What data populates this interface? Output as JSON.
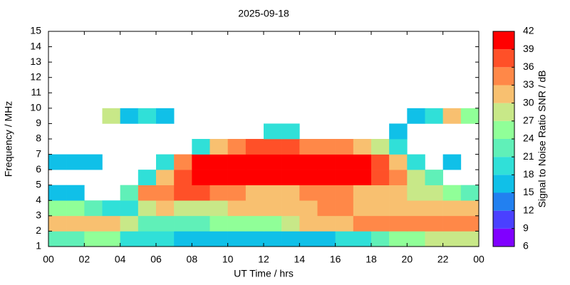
{
  "chart_data": {
    "type": "heatmap",
    "title": "2025-09-18",
    "xlabel": "UT Time / hrs",
    "ylabel": "Frequency / MHz",
    "xlim": [
      0,
      24
    ],
    "ylim": [
      1,
      15
    ],
    "xticks": [
      {
        "value": 0,
        "label": "00"
      },
      {
        "value": 2,
        "label": "02"
      },
      {
        "value": 4,
        "label": "04"
      },
      {
        "value": 6,
        "label": "06"
      },
      {
        "value": 8,
        "label": "08"
      },
      10,
      12,
      14,
      16,
      18,
      20,
      22,
      {
        "value": 24,
        "label": "00"
      }
    ],
    "yticks": [
      1,
      2,
      3,
      4,
      5,
      6,
      7,
      8,
      9,
      10,
      11,
      12,
      13,
      14,
      15
    ],
    "xbins": [
      0,
      1,
      2,
      3,
      4,
      5,
      6,
      7,
      8,
      9,
      10,
      11,
      12,
      13,
      14,
      15,
      16,
      17,
      18,
      19,
      20,
      21,
      22,
      23,
      24
    ],
    "ybins": [
      1,
      2,
      3,
      4,
      5,
      6,
      7,
      8,
      9,
      10,
      11,
      12,
      13,
      14,
      15
    ],
    "values": [
      [
        22,
        22,
        24,
        24,
        20,
        18,
        18,
        17,
        16,
        15,
        15,
        15,
        16,
        16,
        17,
        17,
        18,
        20,
        22,
        24,
        26,
        27,
        27,
        27
      ],
      [
        30,
        30,
        30,
        30,
        27,
        22,
        22,
        22,
        22,
        24,
        24,
        24,
        24,
        27,
        30,
        30,
        30,
        33,
        33,
        33,
        33,
        33,
        33,
        33
      ],
      [
        24,
        24,
        22,
        20,
        20,
        27,
        30,
        27,
        27,
        27,
        30,
        30,
        30,
        30,
        30,
        33,
        33,
        30,
        30,
        30,
        30,
        30,
        30,
        30
      ],
      [
        16,
        15,
        null,
        null,
        22,
        33,
        33,
        36,
        36,
        33,
        33,
        30,
        30,
        30,
        33,
        33,
        33,
        30,
        30,
        30,
        27,
        27,
        24,
        22
      ],
      [
        null,
        null,
        null,
        null,
        null,
        18,
        30,
        36,
        39,
        39,
        39,
        39,
        39,
        39,
        39,
        39,
        39,
        39,
        36,
        33,
        27,
        22,
        null,
        null
      ],
      [
        15,
        15,
        15,
        null,
        null,
        null,
        18,
        33,
        39,
        39,
        39,
        39,
        39,
        39,
        39,
        39,
        39,
        39,
        36,
        30,
        18,
        null,
        15,
        null
      ],
      [
        null,
        null,
        null,
        null,
        null,
        null,
        null,
        null,
        20,
        30,
        33,
        36,
        36,
        36,
        33,
        33,
        33,
        30,
        27,
        20,
        null,
        null,
        null,
        null
      ],
      [
        null,
        null,
        null,
        null,
        null,
        null,
        null,
        null,
        null,
        null,
        null,
        null,
        18,
        18,
        null,
        null,
        null,
        null,
        null,
        15,
        null,
        null,
        null,
        null
      ],
      [
        null,
        null,
        null,
        27,
        15,
        18,
        15,
        null,
        null,
        null,
        null,
        null,
        null,
        null,
        null,
        null,
        null,
        null,
        null,
        null,
        15,
        18,
        30,
        24
      ],
      [
        null,
        null,
        null,
        null,
        null,
        null,
        null,
        null,
        null,
        null,
        null,
        null,
        null,
        null,
        null,
        null,
        null,
        null,
        null,
        null,
        null,
        null,
        null,
        null
      ],
      [
        null,
        null,
        null,
        null,
        null,
        null,
        null,
        null,
        null,
        null,
        null,
        null,
        null,
        null,
        null,
        null,
        null,
        null,
        null,
        null,
        null,
        null,
        null,
        null
      ],
      [
        null,
        null,
        null,
        null,
        null,
        null,
        null,
        null,
        null,
        null,
        null,
        null,
        null,
        null,
        null,
        null,
        null,
        null,
        null,
        null,
        null,
        null,
        null,
        null
      ],
      [
        null,
        null,
        null,
        null,
        null,
        null,
        null,
        null,
        null,
        null,
        null,
        null,
        null,
        null,
        null,
        null,
        null,
        null,
        null,
        null,
        null,
        null,
        null,
        null
      ],
      [
        null,
        null,
        null,
        null,
        null,
        null,
        null,
        null,
        null,
        null,
        null,
        null,
        null,
        null,
        null,
        null,
        null,
        null,
        null,
        null,
        null,
        null,
        null,
        null
      ]
    ],
    "colorbar": {
      "label": "Signal to Noise Ratio SNR / dB",
      "ticks": [
        6,
        9,
        12,
        15,
        18,
        21,
        24,
        27,
        30,
        33,
        36,
        39,
        42
      ],
      "colors": [
        "#8000ff",
        "#4a40ff",
        "#2280f0",
        "#10c0e8",
        "#30e0d8",
        "#60f0b8",
        "#90ff98",
        "#c8e888",
        "#f8c070",
        "#ff8848",
        "#ff5028",
        "#ff0000"
      ]
    }
  }
}
